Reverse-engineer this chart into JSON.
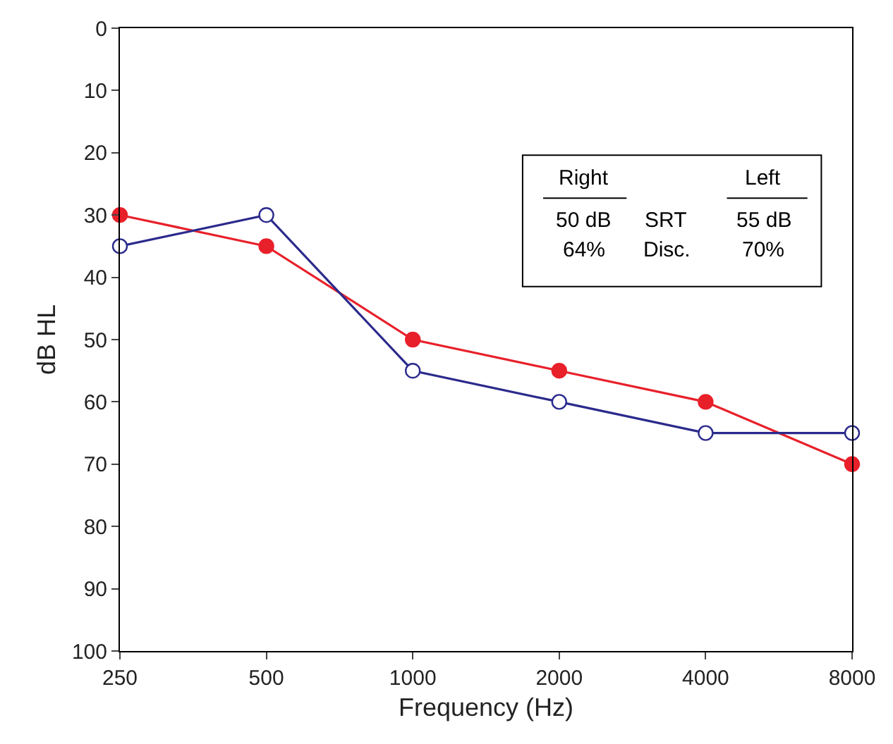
{
  "chart_data": {
    "type": "line",
    "xlabel": "Frequency (Hz)",
    "ylabel": "dB HL",
    "categories": [
      "250",
      "500",
      "1000",
      "2000",
      "4000",
      "8000"
    ],
    "series": [
      {
        "color": "#e8202a",
        "values": [
          30,
          35,
          50,
          55,
          60,
          70
        ],
        "marker": "circle"
      },
      {
        "color": "#2b2a8c",
        "values": [
          35,
          30,
          55,
          60,
          65,
          65
        ],
        "marker": "circle-open"
      }
    ],
    "ylim": [
      100,
      0
    ],
    "yticks": [
      0,
      10,
      20,
      30,
      40,
      50,
      60,
      70,
      80,
      90,
      100
    ],
    "grid": false,
    "annotations": [
      "Right",
      "Left",
      "50 dB",
      "SRT",
      "55 dB",
      "64%",
      "Disc.",
      "70%"
    ]
  }
}
